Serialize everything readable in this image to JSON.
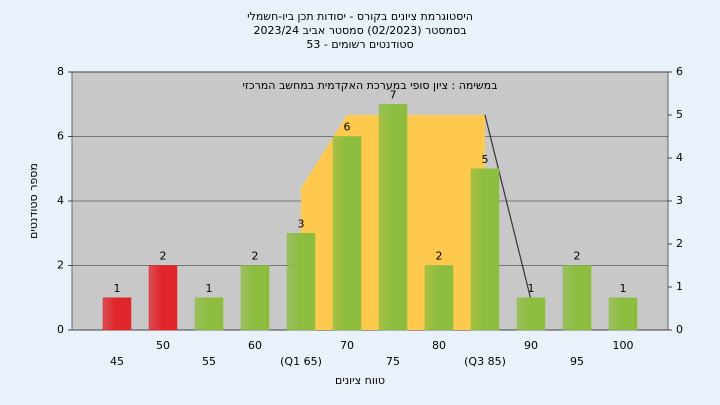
{
  "chart_data": {
    "type": "bar",
    "title": [
      "היסטוגרמת ציונים בקורס - יסודות תכן ביו-חשמלי",
      "בסמסטר (02/2023) סמסטר אביב 2023/24",
      "סטודנטים רשומים - 53"
    ],
    "annotation": "במשימה : ציון סופי במערכת האקדמית במחשב המרכזי",
    "x_label": "טווח ציונים",
    "y_label": "מספר סטודנטים",
    "categories": [
      "45",
      "50",
      "55",
      "60",
      "(Q1 65)",
      "70",
      "75",
      "80",
      "(Q3 85)",
      "90",
      "95",
      "100"
    ],
    "values": [
      1,
      2,
      1,
      2,
      3,
      6,
      7,
      2,
      5,
      1,
      2,
      1
    ],
    "colors": [
      "#e0262b",
      "#e0262b",
      "#8cbd3f",
      "#8cbd3f",
      "#8cbd3f",
      "#8cbd3f",
      "#8cbd3f",
      "#8cbd3f",
      "#8cbd3f",
      "#8cbd3f",
      "#8cbd3f",
      "#8cbd3f"
    ],
    "ylim": [
      0,
      8
    ],
    "yticks": [
      0,
      2,
      4,
      6,
      8
    ],
    "y2lim": [
      0,
      6
    ],
    "y2ticks": [
      0,
      1,
      2,
      3,
      4,
      5,
      6
    ],
    "overlay_series": [
      {
        "kind": "area",
        "color": "#ffc94d",
        "axis": "y2",
        "values": [
          null,
          null,
          null,
          null,
          3.3,
          5,
          5,
          5,
          5,
          null,
          null,
          null
        ]
      },
      {
        "kind": "line",
        "color": "#333333",
        "axis": "y2",
        "values": [
          null,
          null,
          null,
          null,
          null,
          null,
          null,
          null,
          5,
          0.7,
          null,
          null
        ]
      }
    ],
    "grid": true
  }
}
